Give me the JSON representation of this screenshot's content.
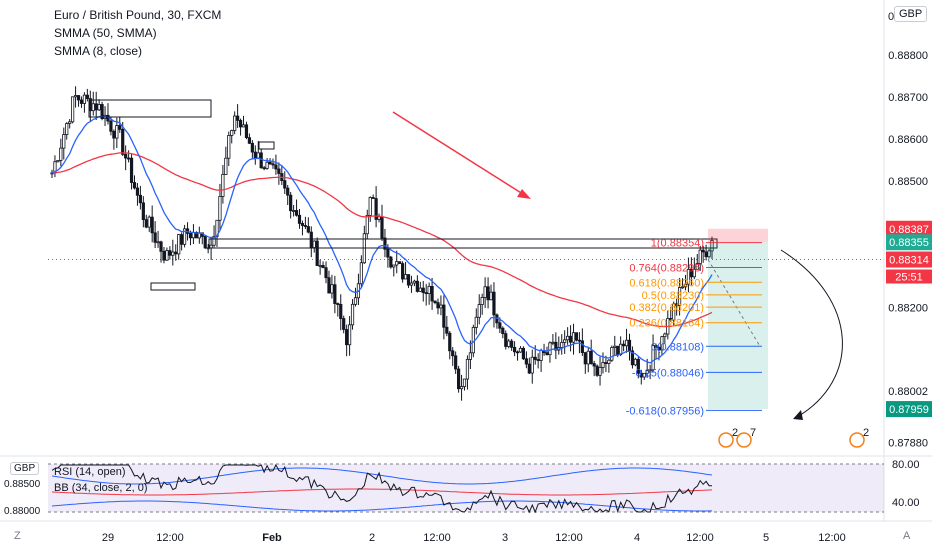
{
  "legend": {
    "title": "Euro / British Pound, 30, FXCM",
    "ind1": "SMMA (50, SMMA)",
    "ind2": "SMMA (8, close)"
  },
  "currency_button": "GBP",
  "rsi_currency": "GBP",
  "rsi_legend": {
    "line1": "RSI (14, open)",
    "line2": "BB (34, close, 2, 0)"
  },
  "rsi_levels": [
    "80.00",
    "40.00"
  ],
  "rsi_left_labels": [
    "0.88500",
    "0.88000"
  ],
  "corner_left": "Z",
  "corner_right": "A",
  "price_ticks": [
    "0.88800",
    "0.88700",
    "0.88600",
    "0.88500",
    "0.88387",
    "0.88355",
    "0.88314",
    "0.88200",
    "0.88100",
    "0.88002",
    "0.87959",
    "0.87880"
  ],
  "price_tick_values": [
    0.888,
    0.887,
    0.886,
    0.885,
    0.88387,
    0.88355,
    0.88314,
    0.882,
    0.881,
    0.88002,
    0.87959,
    0.8788
  ],
  "top_axis_partial": "0.8",
  "countdown": "25:51",
  "tags": {
    "stop": {
      "label": "0.88387",
      "color": "#f23645"
    },
    "entry": {
      "label": "0.88355",
      "color": "#22ab94"
    },
    "current": {
      "label": "0.88314",
      "color": "#f23645"
    },
    "target": {
      "label": "0.87959",
      "color": "#089981"
    }
  },
  "fib_levels": [
    {
      "label": "1(0.88354)",
      "value": 0.88354,
      "color": "#f23645"
    },
    {
      "label": "0.764(0.88295)",
      "value": 0.88295,
      "color": "#f23645"
    },
    {
      "label": "0.618(0.88260)",
      "value": 0.8826,
      "color": "#ff9800"
    },
    {
      "label": "0.5(0.88230)",
      "value": 0.8823,
      "color": "#ff9800"
    },
    {
      "label": "0.382(0.88201)",
      "value": 0.88201,
      "color": "#ff9800"
    },
    {
      "label": "0.236(0.88164)",
      "value": 0.88164,
      "color": "#ff9800"
    },
    {
      "label": "0(0.88108)",
      "value": 0.88108,
      "color": "#2962ff"
    },
    {
      "label": "-0.25(0.88046)",
      "value": 0.88046,
      "color": "#2962ff"
    },
    {
      "label": "-0.618(0.87956)",
      "value": 0.87956,
      "color": "#2962ff"
    }
  ],
  "time_labels": [
    "29",
    "12:00",
    "Feb",
    "2",
    "12:00",
    "3",
    "12:00",
    "4",
    "12:00",
    "5",
    "12:00"
  ],
  "events": [
    {
      "label": "2"
    },
    {
      "label": "7"
    },
    {
      "label": "2"
    }
  ],
  "chart_data": {
    "type": "candlestick",
    "title": "Euro / British Pound, 30, FXCM",
    "ylim": [
      0.8785,
      0.8893
    ],
    "x": [
      "29",
      "12:00",
      "Feb",
      "2",
      "12:00",
      "3",
      "12:00",
      "4",
      "12:00",
      "5",
      "12:00"
    ],
    "close_anchor_values": [
      0.8852,
      0.887,
      0.8868,
      0.886,
      0.8842,
      0.8832,
      0.8838,
      0.8835,
      0.8866,
      0.8856,
      0.885,
      0.884,
      0.8828,
      0.8812,
      0.8846,
      0.883,
      0.8826,
      0.8822,
      0.88,
      0.8826,
      0.8812,
      0.8806,
      0.881,
      0.8812,
      0.8804,
      0.8812,
      0.8804,
      0.8816,
      0.8828,
      0.8836
    ],
    "series": [
      {
        "name": "SMMA (50, SMMA)",
        "color": "#f23645"
      },
      {
        "name": "SMMA (8, close)",
        "color": "#2962ff"
      },
      {
        "name": "RSI (14, open)",
        "color": "#131722"
      }
    ],
    "annotations": {
      "trade_setup": "short",
      "entry": 0.88355,
      "stop": 0.88387,
      "target": 0.87959
    }
  }
}
